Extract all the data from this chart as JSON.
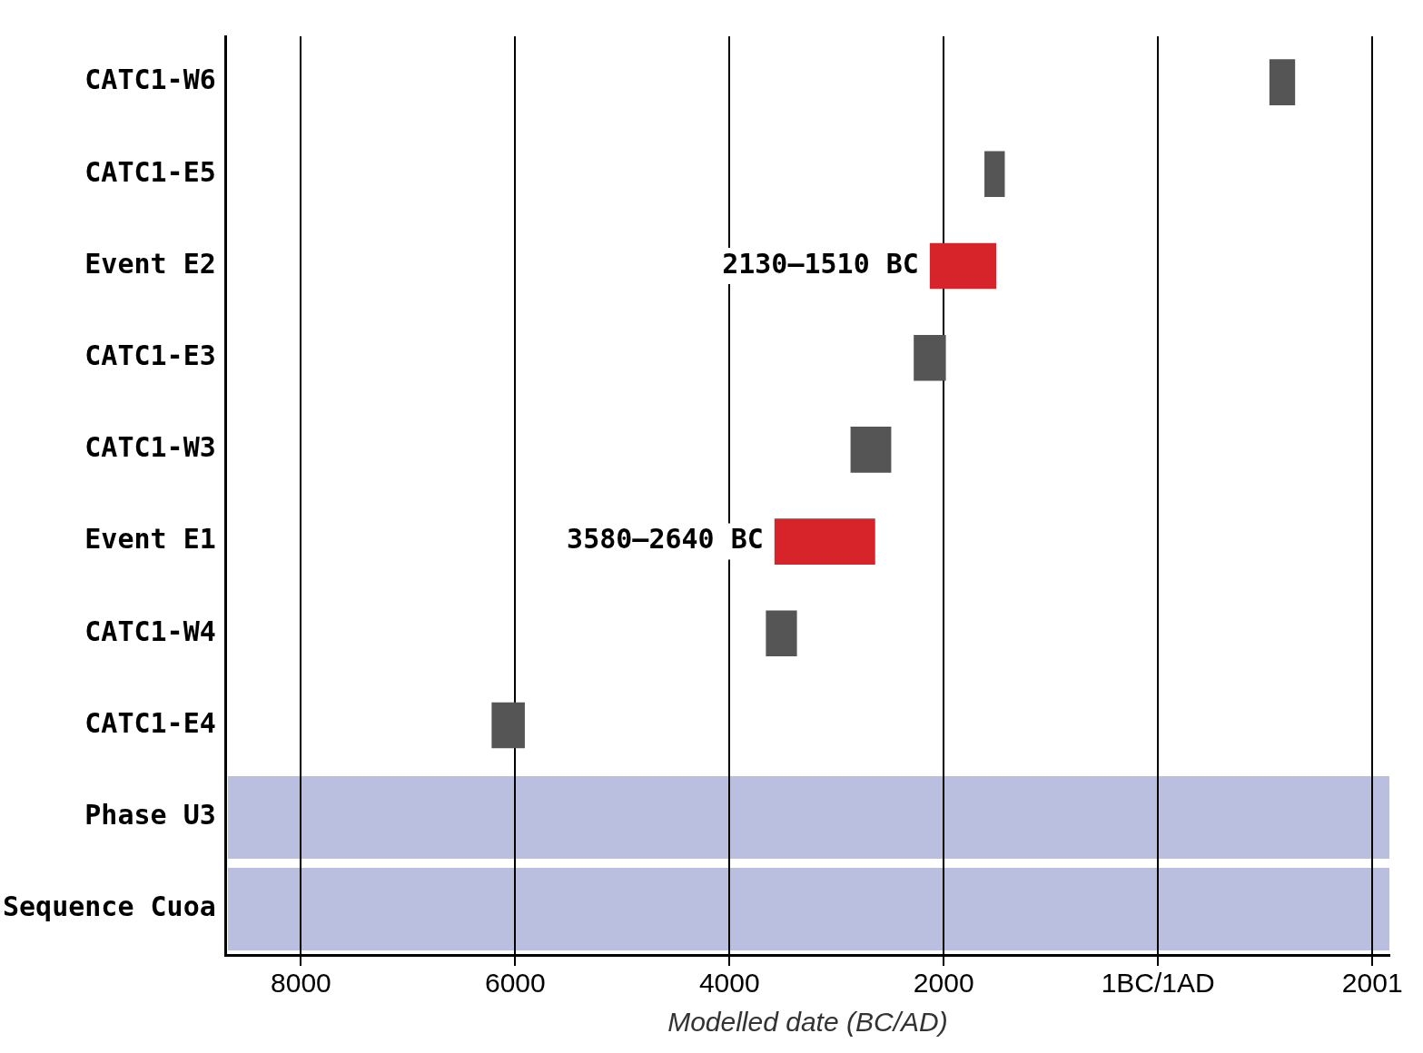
{
  "chart_data": {
    "type": "bar",
    "orientation": "horizontal",
    "xlabel": "Modelled date (BC/AD)",
    "categories": [
      "CATC1-W6",
      "CATC1-E5",
      "Event E2",
      "CATC1-E3",
      "CATC1-W3",
      "Event E1",
      "CATC1-W4",
      "CATC1-E4",
      "Phase U3",
      "Sequence Cuoa"
    ],
    "base": [
      1040,
      -1620,
      -2130,
      -2280,
      -2870,
      -3580,
      -3660,
      -6220,
      null,
      null
    ],
    "values": [
      240,
      190,
      620,
      300,
      380,
      940,
      290,
      310,
      null,
      null
    ],
    "colors": [
      "#555555",
      "#555555",
      "#d7232a",
      "#555555",
      "#555555",
      "#d7232a",
      "#555555",
      "#555555",
      "#bbbfdf",
      "#bbbfdf"
    ],
    "xlim": [
      -8700,
      2160
    ],
    "xticks": [
      {
        "value": -8000,
        "label": "8000"
      },
      {
        "value": -6000,
        "label": "6000"
      },
      {
        "value": -4000,
        "label": "4000"
      },
      {
        "value": -2000,
        "label": "2000"
      },
      {
        "value": 0,
        "label": "1BC/1AD"
      },
      2001
    ],
    "annotations": [
      {
        "text": "2130–1510 BC",
        "x": -2130,
        "y": "Event E2"
      },
      {
        "text": "3580–2640 BC",
        "x": -3580,
        "y": "Event E1"
      }
    ],
    "grid": "x",
    "legend": false
  }
}
